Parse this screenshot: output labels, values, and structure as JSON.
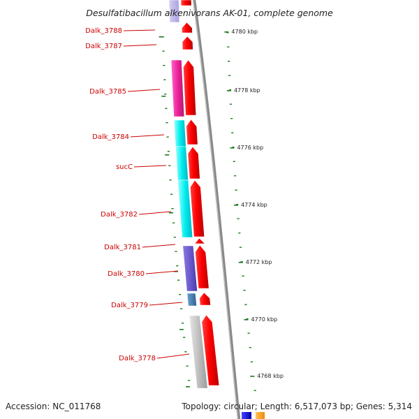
{
  "title": "Desulfatibacillum alkenivorans AK-01, complete genome",
  "footer": {
    "accession": "Accession: NC_011768",
    "topology": "Topology: circular; Length: 6,517,073 bp; Genes: 5,314"
  },
  "colors": {
    "cds_arrow": "#ff0000",
    "backbone": "#888888",
    "tick": "#1a7a1a",
    "label": "#cc0000",
    "cog_magenta": "#ee2299",
    "cog_cyan": "#00eeee",
    "cog_purple": "#6a5acd",
    "cog_steelblue": "#4682b4",
    "cog_gray": "#c0c0c0"
  },
  "genes": [
    {
      "label": "Dalk_3788"
    },
    {
      "label": "Dalk_3787"
    },
    {
      "label": "Dalk_3785"
    },
    {
      "label": "Dalk_3784"
    },
    {
      "label": "sucC"
    },
    {
      "label": "Dalk_3782"
    },
    {
      "label": "Dalk_3781"
    },
    {
      "label": "Dalk_3780"
    },
    {
      "label": "Dalk_3779"
    },
    {
      "label": "Dalk_3778"
    }
  ],
  "kbp_labels": [
    "4780 kbp",
    "4778 kbp",
    "4776 kbp",
    "4774 kbp",
    "4772 kbp",
    "4770 kbp",
    "4768 kbp"
  ]
}
